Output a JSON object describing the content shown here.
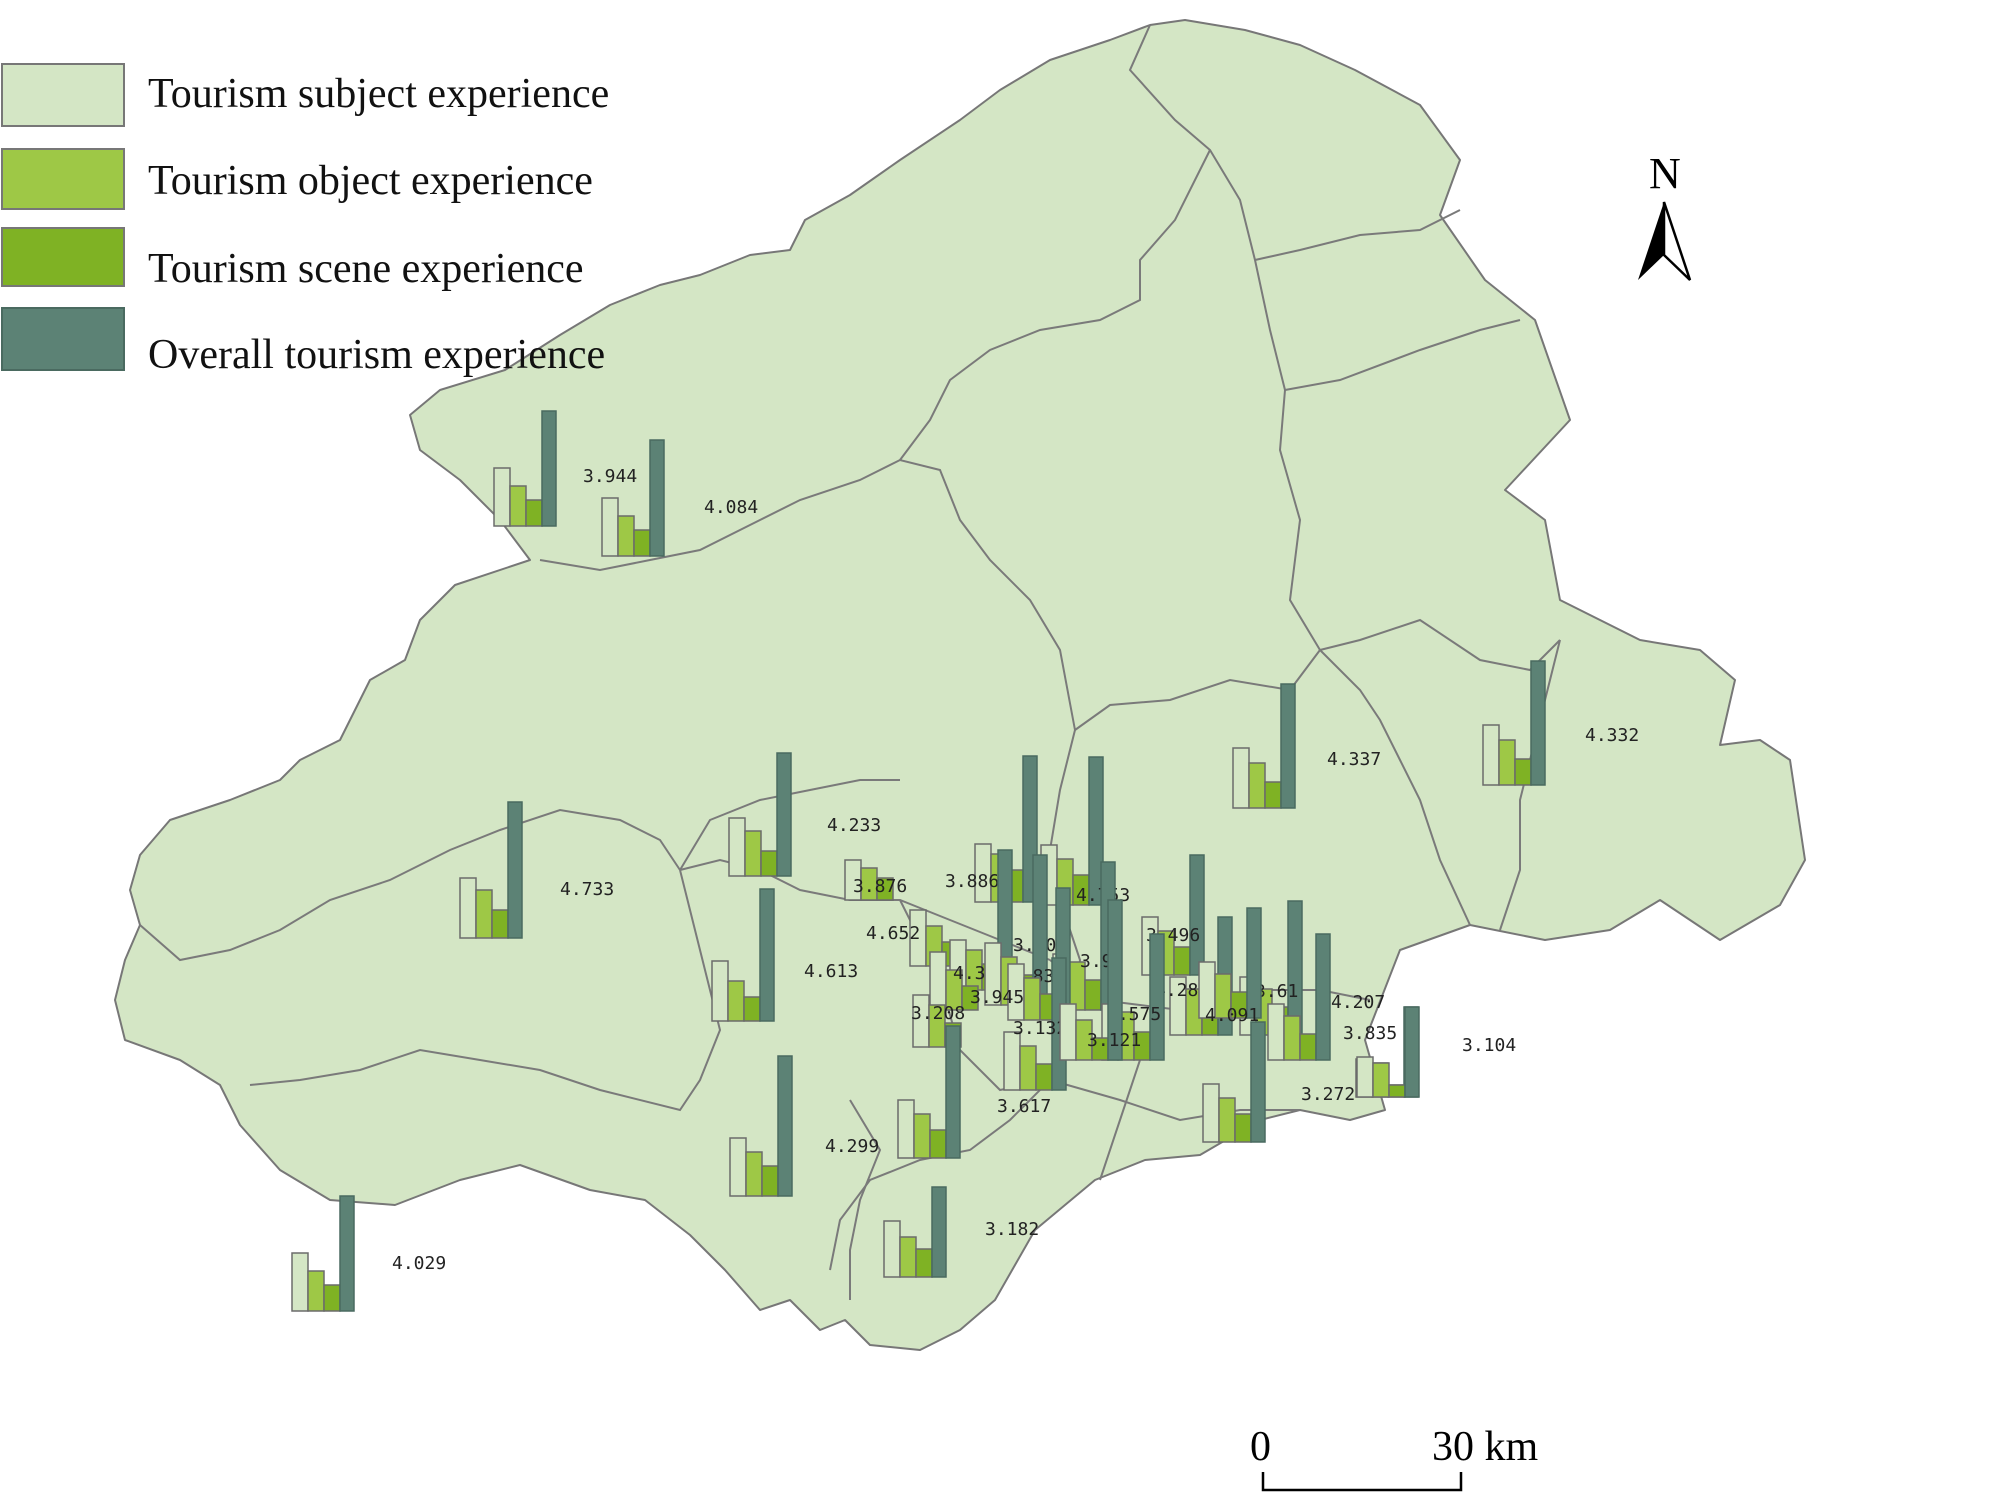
{
  "legend": [
    {
      "label": "Tourism subject experience",
      "color": "#d4e6c5"
    },
    {
      "label": "Tourism object experience",
      "color": "#9ec846"
    },
    {
      "label": "Tourism scene experience",
      "color": "#7fb224"
    },
    {
      "label": "Overall tourism experience",
      "color": "#5c8275"
    }
  ],
  "north_label": "N",
  "scale": {
    "start": "0",
    "end": "30 km"
  },
  "chart_data": {
    "type": "bar",
    "series_names": [
      "Tourism subject experience",
      "Tourism object experience",
      "Tourism scene experience",
      "Overall tourism experience"
    ],
    "labels": [
      "3.944",
      "4.084",
      "4.337",
      "4.332",
      "4.233",
      "4.733",
      "3.876",
      "3.886",
      "4.753",
      "4.652",
      "3.203",
      "3.9",
      "3.496",
      "4.613",
      "4.375",
      "3.831",
      "4.286",
      "3.61",
      "3.945",
      "3.208",
      "4.575",
      "4.091",
      "4.207",
      "3.132",
      "3.121",
      "3.835",
      "3.104",
      "3.272",
      "3.617",
      "4.299",
      "3.182",
      "4.029"
    ]
  }
}
